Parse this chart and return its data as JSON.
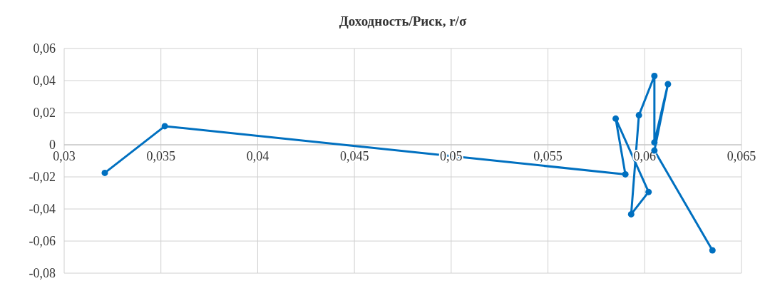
{
  "chart_data": {
    "type": "line",
    "title": "Доходность/Риск, r/σ",
    "series": [
      {
        "color": "#0070c0",
        "x": [
          0.0321,
          0.0352,
          0.059,
          0.0585,
          0.0602,
          0.0593,
          0.0597,
          0.0605,
          0.0605,
          0.0612,
          0.0605,
          0.0635
        ],
        "values": [
          -0.0175,
          0.0116,
          -0.0184,
          0.0163,
          -0.0294,
          -0.0433,
          0.0184,
          0.0429,
          0.0015,
          0.0378,
          -0.0036,
          -0.0658
        ]
      }
    ],
    "xlim": [
      0.03,
      0.065
    ],
    "xticks": [
      {
        "value": 0.03,
        "label": "0,03"
      },
      {
        "value": 0.035,
        "label": "0,035"
      },
      {
        "value": 0.04,
        "label": "0,04"
      },
      {
        "value": 0.045,
        "label": "0,045"
      },
      {
        "value": 0.05,
        "label": "0,05"
      },
      {
        "value": 0.055,
        "label": "0,055"
      },
      {
        "value": 0.06,
        "label": "0,06"
      },
      {
        "value": 0.065,
        "label": "0,065"
      }
    ],
    "ylim": [
      -0.08,
      0.06
    ],
    "yticks": [
      {
        "value": -0.08,
        "label": "-0,08"
      },
      {
        "value": -0.06,
        "label": "-0,06"
      },
      {
        "value": -0.04,
        "label": "-0,04"
      },
      {
        "value": -0.02,
        "label": "-0,02"
      },
      {
        "value": 0,
        "label": "0"
      },
      {
        "value": 0.02,
        "label": "0,02"
      },
      {
        "value": 0.04,
        "label": "0,04"
      },
      {
        "value": 0.06,
        "label": "0,06"
      }
    ],
    "grid": true,
    "marker": "circle",
    "line_style": "solid"
  }
}
